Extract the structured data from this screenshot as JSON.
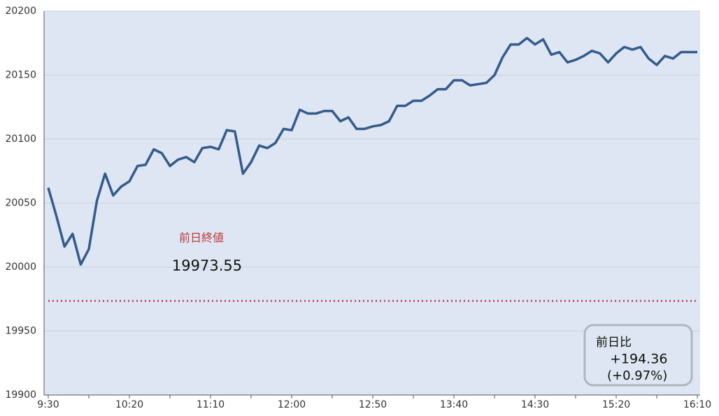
{
  "chart_data": {
    "type": "line",
    "categories": [
      "9:30",
      null,
      null,
      null,
      null,
      null,
      null,
      null,
      null,
      null,
      "10:20",
      null,
      null,
      null,
      null,
      null,
      null,
      null,
      null,
      null,
      "11:10",
      null,
      null,
      null,
      null,
      null,
      null,
      null,
      null,
      null,
      "12:00",
      null,
      null,
      null,
      null,
      null,
      null,
      null,
      null,
      null,
      "12:50",
      null,
      null,
      null,
      null,
      null,
      null,
      null,
      null,
      null,
      "13:40",
      null,
      null,
      null,
      null,
      null,
      null,
      null,
      null,
      null,
      "14:30",
      null,
      null,
      null,
      null,
      null,
      null,
      null,
      null,
      null,
      "15:20",
      null,
      null,
      null,
      null,
      null,
      null,
      null,
      null,
      null,
      "16:10"
    ],
    "values": [
      20062,
      20040,
      20016,
      20026,
      20002,
      20014,
      20052,
      20073,
      20056,
      20063,
      20067,
      20079,
      20080,
      20092,
      20089,
      20079,
      20084,
      20086,
      20082,
      20093,
      20094,
      20092,
      20107,
      20106,
      20073,
      20082,
      20095,
      20093,
      20097,
      20108,
      20107,
      20123,
      20120,
      20120,
      20122,
      20122,
      20114,
      20117,
      20108,
      20108,
      20110,
      20111,
      20114,
      20126,
      20126,
      20130,
      20130,
      20134,
      20139,
      20139,
      20146,
      20146,
      20142,
      20143,
      20144,
      20150,
      20164,
      20174,
      20174,
      20179,
      20174,
      20178,
      20166,
      20168,
      20160,
      20162,
      20165,
      20169,
      20167,
      20160,
      20167,
      20172,
      20170,
      20172,
      20163,
      20158,
      20165,
      20163,
      20168,
      20168,
      20168
    ],
    "color": "#345b8c",
    "ylim": [
      19900,
      20200
    ],
    "yticks": [
      19900,
      19950,
      20000,
      20050,
      20100,
      20150,
      20200
    ],
    "grid": true,
    "reference": {
      "label": "前日終値",
      "value": 19973.55,
      "color": "#c0393b"
    },
    "change_box": {
      "label": "前日比",
      "change": "+194.36",
      "percent": "(+0.97%)"
    }
  }
}
